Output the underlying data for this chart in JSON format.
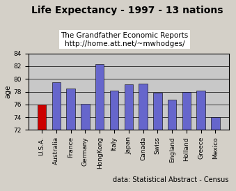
{
  "title": "Life Expectancy - 1997 - 13 nations",
  "subtitle1": "The Grandfather Economic Reports",
  "subtitle2": "http://home.att.net/~mwhodges/",
  "footnote": "data: Statistical Abstract - Census",
  "ylabel": "age",
  "categories": [
    "U.S.A.",
    "Australia",
    "France",
    "Germany",
    "HongKong",
    "Italy",
    "Japan",
    "Canada",
    "Swiss",
    "England",
    "Holland",
    "Greece",
    "Mexico"
  ],
  "values": [
    76.0,
    79.5,
    78.5,
    76.1,
    82.3,
    78.2,
    79.1,
    79.3,
    77.8,
    76.7,
    77.9,
    78.2,
    74.0
  ],
  "bar_colors": [
    "#cc0000",
    "#6666cc",
    "#6666cc",
    "#6666cc",
    "#6666cc",
    "#6666cc",
    "#6666cc",
    "#6666cc",
    "#6666cc",
    "#6666cc",
    "#6666cc",
    "#6666cc",
    "#6666cc"
  ],
  "ylim": [
    72,
    84
  ],
  "yticks": [
    72,
    74,
    76,
    78,
    80,
    82,
    84
  ],
  "background_color": "#d4d0c8",
  "plot_bg_color": "#c8c8c8",
  "title_fontsize": 10,
  "subtitle_fontsize": 7.5,
  "footnote_fontsize": 7,
  "tick_label_fontsize": 6.5,
  "ylabel_fontsize": 7.5
}
